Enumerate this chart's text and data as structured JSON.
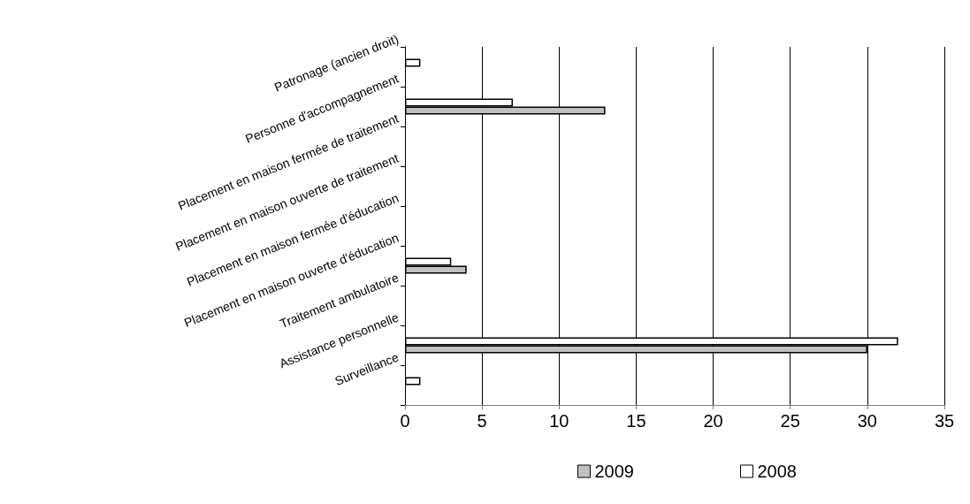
{
  "chart_data": {
    "type": "bar",
    "orientation": "horizontal",
    "categories": [
      "Patronage (ancien droit)",
      "Personne d'accompagnement",
      "Placement en maison fermée de traitement",
      "Placement en maison ouverte de traitement",
      "Placement en maison fermée d'éducation",
      "Placement en maison ouverte d'éducation",
      "Traitement ambulatoire",
      "Assistance personnelle",
      "Surveillance"
    ],
    "series": [
      {
        "name": "2009",
        "color": "#c0c0c0",
        "values": [
          0,
          13,
          0,
          0,
          0,
          4,
          0,
          30,
          0
        ]
      },
      {
        "name": "2008",
        "color": "#ffffff",
        "values": [
          1,
          7,
          0,
          0,
          0,
          3,
          0,
          32,
          1
        ]
      }
    ],
    "xlim": [
      0,
      35
    ],
    "xticks": [
      0,
      5,
      10,
      15,
      20,
      25,
      30,
      35
    ],
    "grid": "x",
    "legend": "bottom"
  }
}
